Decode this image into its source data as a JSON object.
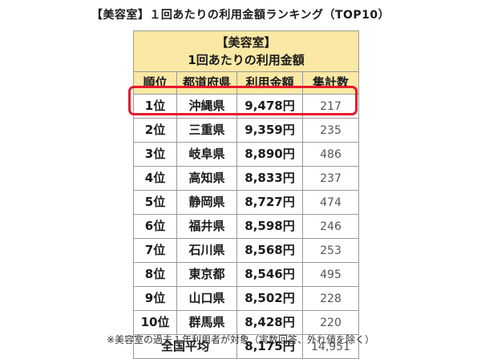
{
  "heading": "【美容室】１回あたりの利用金額ランキング（TOP10）",
  "table": {
    "title_line1": "【美容室】",
    "title_line2": "1回あたりの利用金額",
    "columns": [
      "順位",
      "都道府県",
      "利用金額",
      "集計数"
    ],
    "rows": [
      {
        "rank": "1位",
        "pref": "沖縄県",
        "amount": "9,478円",
        "count": "217"
      },
      {
        "rank": "2位",
        "pref": "三重県",
        "amount": "9,359円",
        "count": "235"
      },
      {
        "rank": "3位",
        "pref": "岐阜県",
        "amount": "8,890円",
        "count": "486"
      },
      {
        "rank": "4位",
        "pref": "高知県",
        "amount": "8,833円",
        "count": "237"
      },
      {
        "rank": "5位",
        "pref": "静岡県",
        "amount": "8,727円",
        "count": "474"
      },
      {
        "rank": "6位",
        "pref": "福井県",
        "amount": "8,598円",
        "count": "246"
      },
      {
        "rank": "7位",
        "pref": "石川県",
        "amount": "8,568円",
        "count": "253"
      },
      {
        "rank": "8位",
        "pref": "東京都",
        "amount": "8,546円",
        "count": "495"
      },
      {
        "rank": "9位",
        "pref": "山口県",
        "amount": "8,502円",
        "count": "228"
      },
      {
        "rank": "10位",
        "pref": "群馬県",
        "amount": "8,428円",
        "count": "220"
      }
    ],
    "average": {
      "label": "全国平均",
      "amount": "8,175円",
      "count": "14,951"
    }
  },
  "footnote": "※美容室の過去１年利用者が対象（実数回答、外れ値を除く）",
  "colors": {
    "header_bg": "#fae8a4",
    "highlight": "#e8182a",
    "border": "#9a9a9a"
  }
}
